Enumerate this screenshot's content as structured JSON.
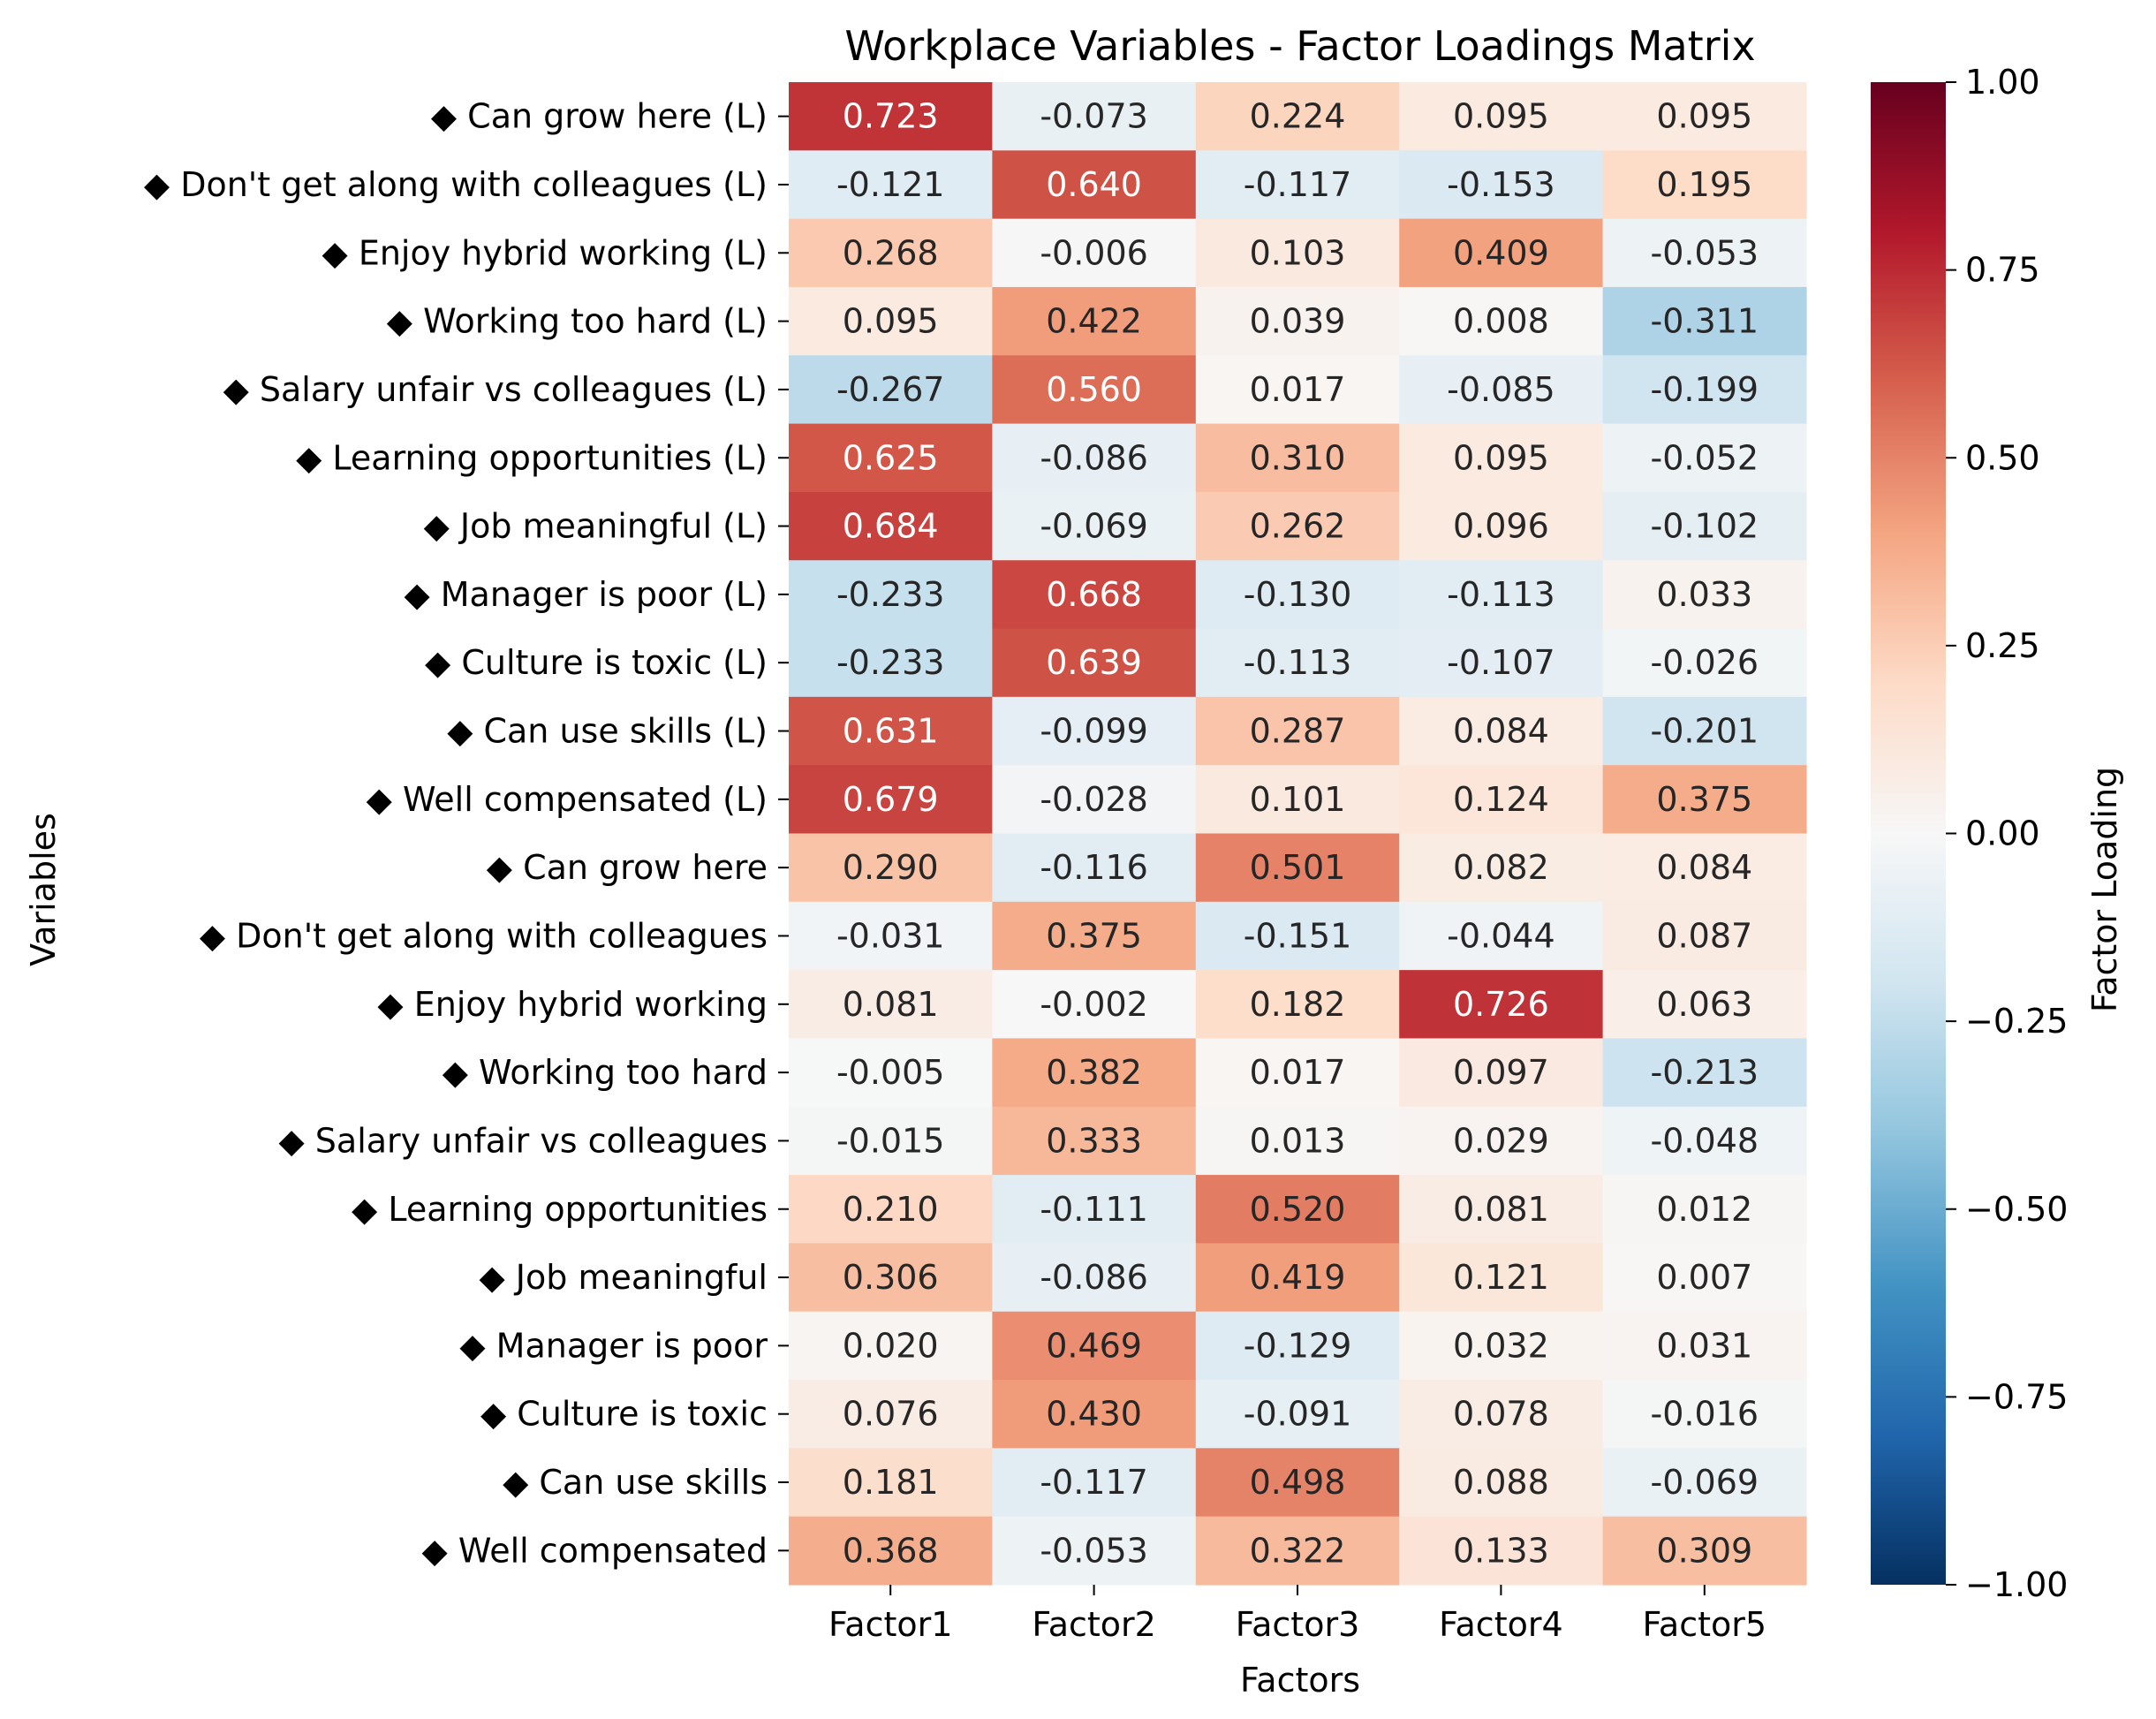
{
  "chart_data": {
    "type": "heatmap",
    "title": "Workplace Variables - Factor Loadings Matrix",
    "xlabel": "Factors",
    "ylabel": "Variables",
    "columns": [
      "Factor1",
      "Factor2",
      "Factor3",
      "Factor4",
      "Factor5"
    ],
    "rows": [
      "◆ Can grow here (L)",
      "◆ Don't get along with colleagues (L)",
      "◆ Enjoy hybrid working (L)",
      "◆ Working too hard (L)",
      "◆ Salary unfair vs colleagues (L)",
      "◆ Learning opportunities (L)",
      "◆ Job meaningful (L)",
      "◆ Manager is poor (L)",
      "◆ Culture is toxic (L)",
      "◆ Can use skills (L)",
      "◆ Well compensated (L)",
      "◆ Can grow here",
      "◆ Don't get along with colleagues",
      "◆ Enjoy hybrid working",
      "◆ Working too hard",
      "◆ Salary unfair vs colleagues",
      "◆ Learning opportunities",
      "◆ Job meaningful",
      "◆ Manager is poor",
      "◆ Culture is toxic",
      "◆ Can use skills",
      "◆ Well compensated"
    ],
    "values": [
      [
        0.723,
        -0.073,
        0.224,
        0.095,
        0.095
      ],
      [
        -0.121,
        0.64,
        -0.117,
        -0.153,
        0.195
      ],
      [
        0.268,
        -0.006,
        0.103,
        0.409,
        -0.053
      ],
      [
        0.095,
        0.422,
        0.039,
        0.008,
        -0.311
      ],
      [
        -0.267,
        0.56,
        0.017,
        -0.085,
        -0.199
      ],
      [
        0.625,
        -0.086,
        0.31,
        0.095,
        -0.052
      ],
      [
        0.684,
        -0.069,
        0.262,
        0.096,
        -0.102
      ],
      [
        -0.233,
        0.668,
        -0.13,
        -0.113,
        0.033
      ],
      [
        -0.233,
        0.639,
        -0.113,
        -0.107,
        -0.026
      ],
      [
        0.631,
        -0.099,
        0.287,
        0.084,
        -0.201
      ],
      [
        0.679,
        -0.028,
        0.101,
        0.124,
        0.375
      ],
      [
        0.29,
        -0.116,
        0.501,
        0.082,
        0.084
      ],
      [
        -0.031,
        0.375,
        -0.151,
        -0.044,
        0.087
      ],
      [
        0.081,
        -0.002,
        0.182,
        0.726,
        0.063
      ],
      [
        -0.005,
        0.382,
        0.017,
        0.097,
        -0.213
      ],
      [
        -0.015,
        0.333,
        0.013,
        0.029,
        -0.048
      ],
      [
        0.21,
        -0.111,
        0.52,
        0.081,
        0.012
      ],
      [
        0.306,
        -0.086,
        0.419,
        0.121,
        0.007
      ],
      [
        0.02,
        0.469,
        -0.129,
        0.032,
        0.031
      ],
      [
        0.076,
        0.43,
        -0.091,
        0.078,
        -0.016
      ],
      [
        0.181,
        -0.117,
        0.498,
        0.088,
        -0.069
      ],
      [
        0.368,
        -0.053,
        0.322,
        0.133,
        0.309
      ]
    ],
    "value_format": "3 decimals",
    "colormap": "RdBu_r",
    "vmin": -1.0,
    "vmax": 1.0,
    "colorbar": {
      "label": "Factor Loading",
      "ticks": [
        1.0,
        0.75,
        0.5,
        0.25,
        0.0,
        -0.25,
        -0.5,
        -0.75,
        -1.0
      ],
      "tick_labels": [
        "1.00",
        "0.75",
        "0.50",
        "0.25",
        "0.00",
        "−0.25",
        "−0.50",
        "−0.75",
        "−1.00"
      ]
    }
  }
}
